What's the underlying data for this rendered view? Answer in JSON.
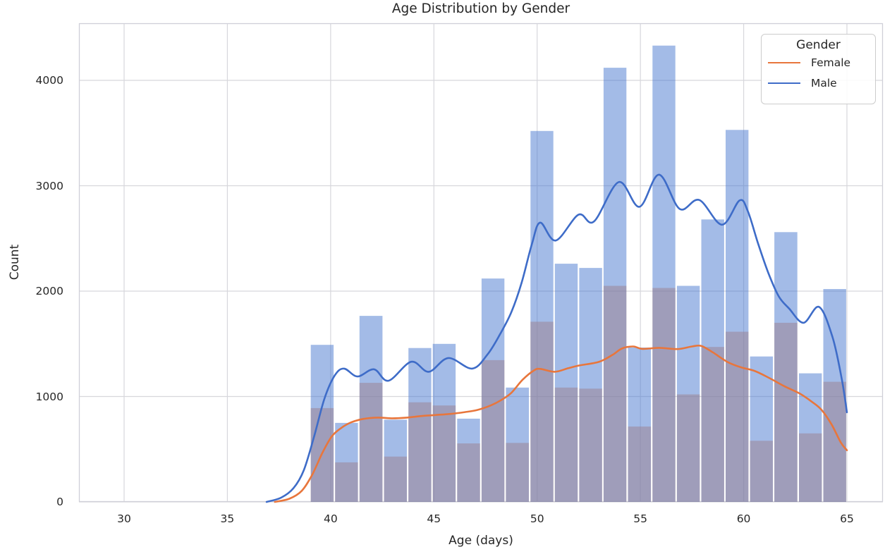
{
  "title": "Age Distribution by Gender",
  "x_axis": {
    "label": "Age (days)",
    "ticks": [
      30,
      35,
      40,
      45,
      50,
      55,
      60,
      65
    ]
  },
  "y_axis": {
    "label": "Count",
    "ticks": [
      0,
      1000,
      2000,
      3000,
      4000
    ]
  },
  "legend": {
    "title": "Gender",
    "entries": [
      {
        "label": "Female",
        "color": "#E8763C"
      },
      {
        "label": "Male",
        "color": "#3E6CC8"
      }
    ]
  },
  "colors": {
    "background": "#ffffff",
    "grid": "#d7d7dc",
    "spine": "#cfcfd8",
    "text": "#262626",
    "female_line": "#E8763C",
    "male_line": "#3E6CC8",
    "female_bar": "rgba(238,133,74,0.5)",
    "male_bar": "rgba(72,120,208,0.5)"
  },
  "chart_data": {
    "type": "bar",
    "subtype": "overlaid histogram with KDE curves",
    "title": "Age Distribution by Gender",
    "xlabel": "Age (days)",
    "ylabel": "Count",
    "xlim": [
      27.8,
      66.7
    ],
    "ylim": [
      0,
      4540
    ],
    "x_ticks": [
      30,
      35,
      40,
      45,
      50,
      55,
      60,
      65
    ],
    "y_ticks": [
      0,
      1000,
      2000,
      3000,
      4000
    ],
    "grid": true,
    "legend_position": "upper right",
    "bin_edges": [
      39.0,
      40.18,
      41.36,
      42.55,
      43.73,
      44.91,
      46.09,
      47.27,
      48.45,
      49.64,
      50.82,
      52.0,
      53.18,
      54.36,
      55.55,
      56.73,
      57.91,
      59.09,
      60.27,
      61.45,
      62.64,
      63.82,
      65.0
    ],
    "series": [
      {
        "name": "Female",
        "values": [
          890,
          375,
          1130,
          430,
          945,
          915,
          555,
          1345,
          560,
          1710,
          1085,
          1075,
          2050,
          715,
          2030,
          1020,
          1470,
          1615,
          580,
          1700,
          650,
          1140
        ],
        "kde": [
          [
            37.3,
            0
          ],
          [
            38.0,
            30
          ],
          [
            38.6,
            105
          ],
          [
            39.1,
            255
          ],
          [
            39.6,
            465
          ],
          [
            40.05,
            620
          ],
          [
            40.5,
            700
          ],
          [
            41.0,
            755
          ],
          [
            41.6,
            788
          ],
          [
            42.3,
            800
          ],
          [
            43.0,
            793
          ],
          [
            43.7,
            800
          ],
          [
            44.4,
            815
          ],
          [
            45.1,
            825
          ],
          [
            45.8,
            835
          ],
          [
            46.5,
            852
          ],
          [
            47.1,
            872
          ],
          [
            47.75,
            915
          ],
          [
            48.25,
            965
          ],
          [
            48.75,
            1035
          ],
          [
            49.3,
            1160
          ],
          [
            49.85,
            1248
          ],
          [
            50.15,
            1262
          ],
          [
            50.85,
            1235
          ],
          [
            51.5,
            1268
          ],
          [
            52.05,
            1295
          ],
          [
            53.0,
            1330
          ],
          [
            53.65,
            1395
          ],
          [
            54.1,
            1455
          ],
          [
            54.65,
            1475
          ],
          [
            55.1,
            1452
          ],
          [
            55.9,
            1462
          ],
          [
            56.8,
            1450
          ],
          [
            57.5,
            1475
          ],
          [
            57.95,
            1480
          ],
          [
            58.5,
            1420
          ],
          [
            59.2,
            1330
          ],
          [
            59.85,
            1278
          ],
          [
            60.5,
            1245
          ],
          [
            61.2,
            1180
          ],
          [
            62.0,
            1095
          ],
          [
            62.7,
            1030
          ],
          [
            63.25,
            958
          ],
          [
            63.75,
            878
          ],
          [
            64.25,
            738
          ],
          [
            64.7,
            565
          ],
          [
            65.0,
            490
          ]
        ]
      },
      {
        "name": "Male",
        "values": [
          1490,
          750,
          1765,
          780,
          1460,
          1500,
          790,
          2120,
          1085,
          3520,
          2260,
          2220,
          4120,
          1465,
          4330,
          2050,
          2680,
          3530,
          1380,
          2560,
          1220,
          2020
        ],
        "kde": [
          [
            36.9,
            0
          ],
          [
            37.6,
            40
          ],
          [
            38.2,
            130
          ],
          [
            38.7,
            300
          ],
          [
            39.2,
            620
          ],
          [
            39.7,
            980
          ],
          [
            40.2,
            1200
          ],
          [
            40.65,
            1265
          ],
          [
            41.3,
            1190
          ],
          [
            42.1,
            1258
          ],
          [
            42.8,
            1150
          ],
          [
            43.9,
            1330
          ],
          [
            44.75,
            1235
          ],
          [
            45.7,
            1365
          ],
          [
            46.85,
            1265
          ],
          [
            47.6,
            1400
          ],
          [
            48.2,
            1590
          ],
          [
            48.75,
            1800
          ],
          [
            49.25,
            2080
          ],
          [
            49.75,
            2450
          ],
          [
            50.15,
            2650
          ],
          [
            50.9,
            2480
          ],
          [
            52.0,
            2725
          ],
          [
            52.75,
            2660
          ],
          [
            53.95,
            3035
          ],
          [
            54.95,
            2800
          ],
          [
            55.9,
            3105
          ],
          [
            56.9,
            2780
          ],
          [
            57.85,
            2865
          ],
          [
            58.95,
            2630
          ],
          [
            59.8,
            2860
          ],
          [
            60.2,
            2760
          ],
          [
            60.7,
            2450
          ],
          [
            61.2,
            2170
          ],
          [
            61.7,
            1950
          ],
          [
            62.2,
            1835
          ],
          [
            62.9,
            1700
          ],
          [
            63.65,
            1850
          ],
          [
            64.3,
            1565
          ],
          [
            64.75,
            1165
          ],
          [
            65.0,
            850
          ]
        ]
      }
    ]
  }
}
